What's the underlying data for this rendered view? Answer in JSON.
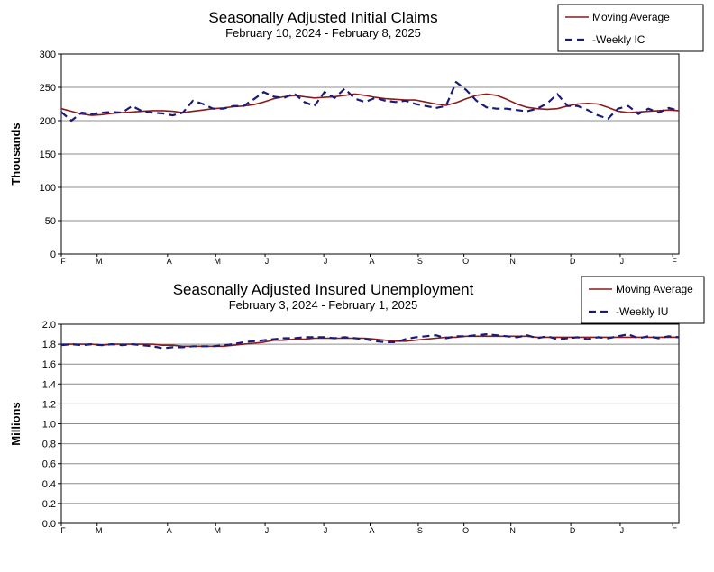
{
  "chart_data": [
    {
      "type": "line",
      "title": "Seasonally Adjusted Initial Claims",
      "subtitle": "February 10, 2024 - February 8, 2025",
      "ylabel": "Thousands",
      "ylim": [
        0,
        300
      ],
      "yticks": [
        "0",
        "50",
        "100",
        "150",
        "200",
        "250",
        "300"
      ],
      "xtick_labels": [
        "F",
        "M",
        "A",
        "M",
        "J",
        "J",
        "A",
        "S",
        "O",
        "N",
        "D",
        "J",
        "F"
      ],
      "grid": true,
      "legend_position": "top-right",
      "series": [
        {
          "name": "Moving Average",
          "color": "#8b1a1a",
          "style": "solid",
          "values": [
            218,
            214,
            210,
            208,
            209,
            211,
            212,
            213,
            214,
            215,
            215,
            214,
            212,
            214,
            216,
            218,
            219,
            221,
            222,
            224,
            228,
            233,
            236,
            238,
            236,
            234,
            235,
            236,
            238,
            240,
            238,
            235,
            233,
            232,
            231,
            231,
            228,
            225,
            223,
            227,
            233,
            238,
            240,
            238,
            232,
            225,
            220,
            218,
            217,
            218,
            222,
            225,
            226,
            225,
            220,
            214,
            212,
            213,
            214,
            215,
            216,
            215
          ]
        },
        {
          "name": "-Weekly IC",
          "color": "#1a1a7a",
          "style": "dashed",
          "values": [
            213,
            200,
            212,
            210,
            212,
            213,
            212,
            222,
            214,
            212,
            211,
            208,
            212,
            230,
            225,
            218,
            218,
            222,
            222,
            232,
            243,
            236,
            234,
            241,
            228,
            222,
            243,
            234,
            248,
            233,
            228,
            234,
            230,
            228,
            230,
            225,
            222,
            219,
            222,
            258,
            246,
            230,
            220,
            218,
            218,
            216,
            214,
            218,
            226,
            240,
            222,
            222,
            216,
            208,
            203,
            218,
            222,
            210,
            218,
            212,
            219,
            215
          ]
        }
      ]
    },
    {
      "type": "line",
      "title": "Seasonally Adjusted Insured Unemployment",
      "subtitle": "February 3, 2024 - February 1, 2025",
      "ylabel": "Millions",
      "ylim": [
        0,
        2.0
      ],
      "yticks": [
        "0.0",
        "0.2",
        "0.4",
        "0.6",
        "0.8",
        "1.0",
        "1.2",
        "1.4",
        "1.6",
        "1.8",
        "2.0"
      ],
      "xtick_labels": [
        "F",
        "M",
        "A",
        "M",
        "J",
        "J",
        "A",
        "S",
        "O",
        "N",
        "D",
        "J",
        "F"
      ],
      "grid": true,
      "legend_position": "top-right",
      "series": [
        {
          "name": "Moving Average",
          "color": "#8b1a1a",
          "style": "solid",
          "values": [
            1.8,
            1.8,
            1.8,
            1.8,
            1.79,
            1.8,
            1.8,
            1.8,
            1.8,
            1.8,
            1.79,
            1.79,
            1.78,
            1.78,
            1.78,
            1.78,
            1.78,
            1.79,
            1.8,
            1.81,
            1.82,
            1.84,
            1.84,
            1.85,
            1.85,
            1.86,
            1.86,
            1.86,
            1.86,
            1.86,
            1.86,
            1.85,
            1.84,
            1.83,
            1.83,
            1.84,
            1.85,
            1.86,
            1.87,
            1.87,
            1.88,
            1.88,
            1.88,
            1.88,
            1.88,
            1.88,
            1.88,
            1.87,
            1.87,
            1.87,
            1.87,
            1.87,
            1.87,
            1.87,
            1.87,
            1.87,
            1.87,
            1.87,
            1.87,
            1.87,
            1.87,
            1.87
          ]
        },
        {
          "name": "-Weekly IU",
          "color": "#1a1a7a",
          "style": "dashed",
          "values": [
            1.79,
            1.8,
            1.79,
            1.8,
            1.79,
            1.8,
            1.79,
            1.8,
            1.79,
            1.78,
            1.76,
            1.77,
            1.77,
            1.78,
            1.78,
            1.78,
            1.79,
            1.8,
            1.82,
            1.83,
            1.84,
            1.85,
            1.86,
            1.86,
            1.87,
            1.87,
            1.87,
            1.86,
            1.87,
            1.86,
            1.85,
            1.83,
            1.82,
            1.82,
            1.85,
            1.87,
            1.88,
            1.89,
            1.86,
            1.88,
            1.88,
            1.89,
            1.9,
            1.89,
            1.88,
            1.87,
            1.89,
            1.86,
            1.88,
            1.85,
            1.86,
            1.87,
            1.85,
            1.87,
            1.86,
            1.88,
            1.9,
            1.86,
            1.88,
            1.86,
            1.88,
            1.87
          ]
        }
      ]
    }
  ]
}
